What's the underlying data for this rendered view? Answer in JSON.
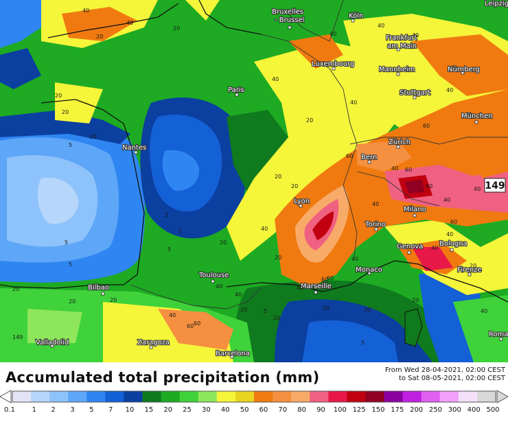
{
  "title": "Accumulated total precipitation (mm)",
  "period": {
    "from": "From Wed 28-04-2021, 02:00 CEST",
    "to": "to Sat 08-05-2021, 02:00 CEST"
  },
  "legend": {
    "ticks": [
      "0.1",
      "1",
      "2",
      "3",
      "5",
      "7",
      "10",
      "15",
      "20",
      "25",
      "30",
      "40",
      "50",
      "60",
      "70",
      "80",
      "90",
      "100",
      "125",
      "150",
      "175",
      "200",
      "250",
      "300",
      "400",
      "500"
    ],
    "colors": [
      "#e3e3f6",
      "#b6d6fb",
      "#8ec2fb",
      "#5ea6f7",
      "#2f86f2",
      "#1460d6",
      "#0b3fa0",
      "#0f7a1e",
      "#1eaa22",
      "#3fd23a",
      "#8ee65a",
      "#f5f53a",
      "#e8d520",
      "#f07a10",
      "#f59040",
      "#f8aa68",
      "#f06080",
      "#e81848",
      "#c00010",
      "#900020",
      "#8a00a0",
      "#c020e0",
      "#e060f0",
      "#f0a0f8",
      "#f4e0fa",
      "#d8d8d8"
    ],
    "arrows": [
      "left-arrow-icon",
      "right-arrow-icon"
    ]
  },
  "cities": [
    {
      "name": "Bruxelles",
      "name2": "- Brussel"
    },
    {
      "name": "Köln"
    },
    {
      "name": "Leipzig"
    },
    {
      "name": "Frankfurt",
      "name2": "am Main"
    },
    {
      "name": "Luxembourg"
    },
    {
      "name": "Mannheim"
    },
    {
      "name": "Nürnberg"
    },
    {
      "name": "Paris"
    },
    {
      "name": "Stuttgart"
    },
    {
      "name": "München"
    },
    {
      "name": "Nantes"
    },
    {
      "name": "Zürich"
    },
    {
      "name": "Bern"
    },
    {
      "name": "Lyon"
    },
    {
      "name": "Milano"
    },
    {
      "name": "Torino"
    },
    {
      "name": "Genova"
    },
    {
      "name": "Bologna"
    },
    {
      "name": "Monaco"
    },
    {
      "name": "Firenze"
    },
    {
      "name": "Toulouse"
    },
    {
      "name": "Marseille"
    },
    {
      "name": "Bilbao"
    },
    {
      "name": "Zaragoza"
    },
    {
      "name": "Barcelona"
    },
    {
      "name": "Valladolid"
    },
    {
      "name": "Roma"
    }
  ],
  "contour_labels": [
    "40",
    "40",
    "20",
    "20",
    "40",
    "40",
    "40",
    "40",
    "20",
    "20",
    "40",
    "20",
    "5",
    "5",
    "5",
    "5",
    "20",
    "40",
    "60",
    "60",
    "40",
    "40",
    "60",
    "60",
    "40",
    "5",
    "60",
    "60",
    "40",
    "20",
    "20",
    "20",
    "20",
    "20",
    "20",
    "40",
    "20",
    "5",
    "40",
    "20",
    "20",
    "40",
    "60",
    "40",
    "40",
    "60",
    "40",
    "40",
    "20",
    "40",
    "5",
    "20",
    "5",
    "20",
    "40",
    "149",
    "20",
    "60"
  ],
  "max_value": "149"
}
